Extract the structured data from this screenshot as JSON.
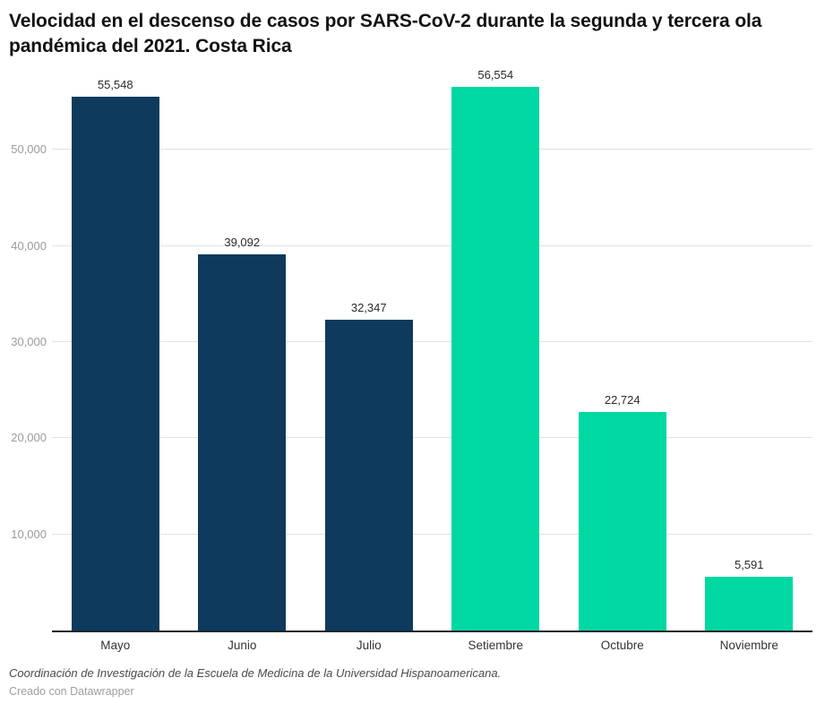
{
  "title": "Velocidad en el descenso de casos por SARS-CoV-2 durante la segunda y tercera ola pandémica del 2021. Costa Rica",
  "chart_data": {
    "type": "bar",
    "title": "Velocidad en el descenso de casos por SARS-CoV-2 durante la segunda y tercera ola pandémica del 2021. Costa Rica",
    "categories": [
      "Mayo",
      "Junio",
      "Julio",
      "Setiembre",
      "Octubre",
      "Noviembre"
    ],
    "values": [
      55548,
      39092,
      32347,
      56554,
      22724,
      5591
    ],
    "value_labels": [
      "55,548",
      "39,092",
      "32,347",
      "56,554",
      "22,724",
      "5,591"
    ],
    "bar_colors": [
      "#0d3a5d",
      "#0d3a5d",
      "#0d3a5d",
      "#00d8a3",
      "#00d8a3",
      "#00d8a3"
    ],
    "xlabel": "",
    "ylabel": "",
    "ylim": [
      0,
      57200
    ],
    "yticks": [
      {
        "value": 10000,
        "label": "10,000"
      },
      {
        "value": 20000,
        "label": "20,000"
      },
      {
        "value": 30000,
        "label": "30,000"
      },
      {
        "value": 40000,
        "label": "40,000"
      },
      {
        "value": 50000,
        "label": "50,000"
      }
    ],
    "grid": "horizontal",
    "legend": "none"
  },
  "colors": {
    "navy": "#0d3a5d",
    "teal": "#00d8a3",
    "gridline": "#e2e2e2",
    "axis": "#21262b"
  },
  "footer": {
    "source": "Coordinación de Investigación de la Escuela de Medicina de la Universidad Hispanoamericana.",
    "credit": "Creado con Datawrapper"
  }
}
